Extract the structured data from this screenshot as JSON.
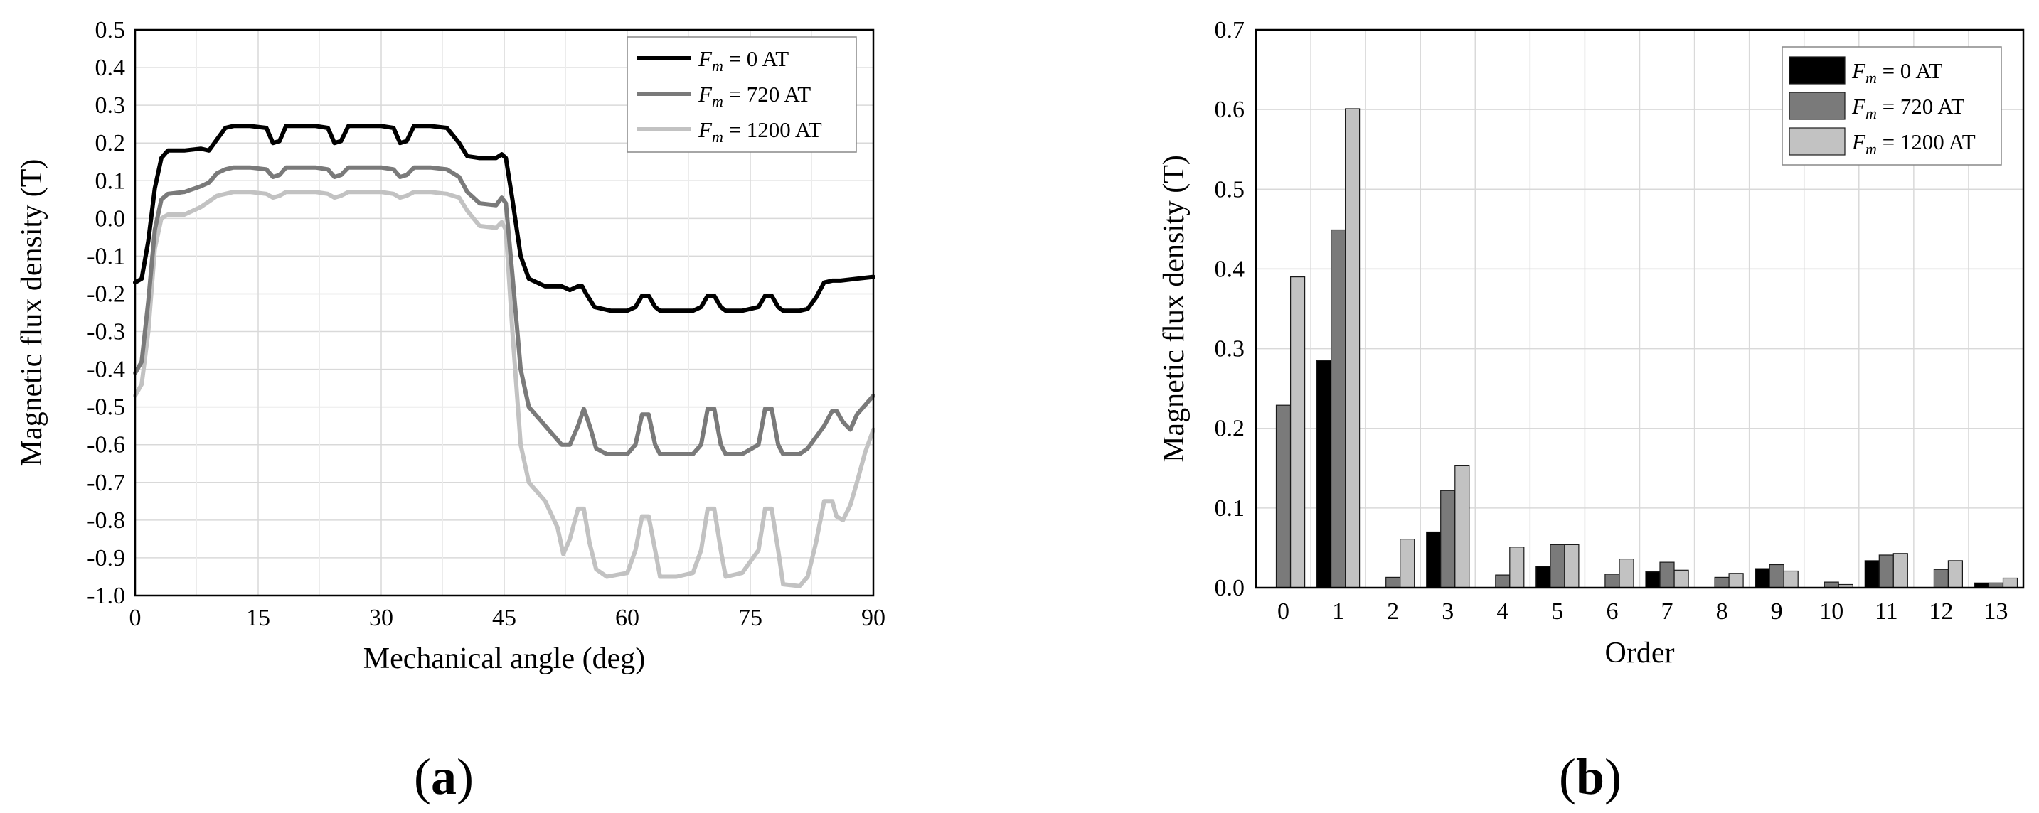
{
  "chart_data": [
    {
      "type": "line",
      "panel_label": "a",
      "title": "",
      "xlabel": "Mechanical angle (deg)",
      "ylabel": "Magnetic flux density (T)",
      "xlim": [
        0,
        90
      ],
      "ylim": [
        -1.0,
        0.5
      ],
      "xticks": [
        "0",
        "15",
        "30",
        "45",
        "60",
        "75",
        "90"
      ],
      "yticks": [
        "0.5",
        "0.4",
        "0.3",
        "0.2",
        "0.1",
        "0.0",
        "-0.1",
        "-0.2",
        "-0.3",
        "-0.4",
        "-0.5",
        "-0.6",
        "-0.7",
        "-0.8",
        "-0.9",
        "-1.0"
      ],
      "grid": true,
      "legend_position": "top-right",
      "series": [
        {
          "name": "F_m = 0 AT",
          "legend_symbol": "F",
          "legend_sub": "m",
          "legend_rest": " = 0 AT",
          "color": "#000000",
          "x": [
            0,
            0.8,
            1.6,
            2.4,
            3.2,
            4,
            6,
            8,
            9,
            10,
            11,
            12,
            14,
            16,
            16.8,
            17.6,
            18.4,
            20,
            22,
            23.5,
            24.3,
            25.1,
            26,
            28,
            30,
            31.5,
            32.3,
            33.1,
            34,
            36,
            38,
            39.5,
            40.5,
            42,
            44,
            44.7,
            45.2,
            46,
            47,
            48,
            50,
            52,
            53,
            54,
            54.5,
            55,
            56,
            58,
            60,
            61,
            61.8,
            62.6,
            63.4,
            64,
            66,
            68,
            69,
            69.8,
            70.6,
            71.4,
            72,
            74,
            76,
            76.8,
            77.6,
            78.4,
            79,
            81,
            82,
            83,
            84,
            85,
            86,
            88,
            90
          ],
          "y": [
            -0.17,
            -0.16,
            -0.06,
            0.08,
            0.16,
            0.18,
            0.18,
            0.185,
            0.18,
            0.21,
            0.24,
            0.245,
            0.245,
            0.24,
            0.2,
            0.205,
            0.245,
            0.245,
            0.245,
            0.24,
            0.2,
            0.205,
            0.245,
            0.245,
            0.245,
            0.24,
            0.2,
            0.205,
            0.245,
            0.245,
            0.24,
            0.2,
            0.165,
            0.16,
            0.16,
            0.17,
            0.16,
            0.05,
            -0.1,
            -0.16,
            -0.18,
            -0.18,
            -0.19,
            -0.18,
            -0.18,
            -0.2,
            -0.235,
            -0.245,
            -0.245,
            -0.235,
            -0.205,
            -0.205,
            -0.235,
            -0.245,
            -0.245,
            -0.245,
            -0.235,
            -0.205,
            -0.205,
            -0.235,
            -0.245,
            -0.245,
            -0.235,
            -0.205,
            -0.205,
            -0.235,
            -0.245,
            -0.245,
            -0.24,
            -0.21,
            -0.17,
            -0.165,
            -0.165,
            -0.16,
            -0.155
          ]
        },
        {
          "name": "F_m = 720 AT",
          "legend_symbol": "F",
          "legend_sub": "m",
          "legend_rest": " = 720 AT",
          "color": "#7a7a7a",
          "x": [
            0,
            0.8,
            1.6,
            2.4,
            3.2,
            4,
            6,
            8,
            9,
            10,
            11,
            12,
            14,
            16,
            16.8,
            17.6,
            18.4,
            20,
            22,
            23.5,
            24.3,
            25.1,
            26,
            28,
            30,
            31.5,
            32.3,
            33.1,
            34,
            36,
            38,
            39.5,
            40.5,
            42,
            44,
            44.7,
            45.2,
            46,
            47,
            48,
            50,
            52,
            53,
            54,
            54.7,
            55.5,
            56.2,
            57.5,
            60,
            61,
            61.8,
            62.6,
            63.4,
            64,
            66,
            68,
            69,
            69.8,
            70.6,
            71.4,
            72,
            74,
            76,
            76.8,
            77.6,
            78.4,
            79,
            81,
            82,
            83,
            84,
            85,
            85.5,
            86.3,
            87.2,
            88,
            90
          ],
          "y": [
            -0.41,
            -0.38,
            -0.22,
            -0.03,
            0.05,
            0.065,
            0.07,
            0.085,
            0.095,
            0.12,
            0.13,
            0.135,
            0.135,
            0.13,
            0.11,
            0.115,
            0.135,
            0.135,
            0.135,
            0.13,
            0.11,
            0.115,
            0.135,
            0.135,
            0.135,
            0.13,
            0.11,
            0.115,
            0.135,
            0.135,
            0.13,
            0.11,
            0.07,
            0.04,
            0.035,
            0.055,
            0.04,
            -0.15,
            -0.4,
            -0.5,
            -0.55,
            -0.6,
            -0.6,
            -0.55,
            -0.505,
            -0.555,
            -0.61,
            -0.625,
            -0.625,
            -0.6,
            -0.52,
            -0.52,
            -0.6,
            -0.625,
            -0.625,
            -0.625,
            -0.6,
            -0.505,
            -0.505,
            -0.6,
            -0.625,
            -0.625,
            -0.6,
            -0.505,
            -0.505,
            -0.6,
            -0.625,
            -0.625,
            -0.61,
            -0.58,
            -0.55,
            -0.51,
            -0.51,
            -0.54,
            -0.56,
            -0.52,
            -0.47
          ]
        },
        {
          "name": "F_m = 1200 AT",
          "legend_symbol": "F",
          "legend_sub": "m",
          "legend_rest": " = 1200 AT",
          "color": "#c2c2c2",
          "x": [
            0,
            0.8,
            1.6,
            2.4,
            3.2,
            4,
            6,
            8,
            9,
            10,
            11,
            12,
            14,
            16,
            16.8,
            17.6,
            18.4,
            20,
            22,
            23.5,
            24.3,
            25.1,
            26,
            28,
            30,
            31.5,
            32.3,
            33.1,
            34,
            36,
            38,
            39.5,
            40.5,
            42,
            44,
            44.7,
            45.2,
            46,
            47,
            48,
            50,
            51.5,
            52.2,
            53,
            54,
            54.7,
            55.4,
            56.2,
            57.5,
            60,
            61,
            61.8,
            62.6,
            63.4,
            64,
            66,
            68,
            69,
            69.8,
            70.6,
            71.4,
            72,
            74,
            76,
            76.8,
            77.6,
            78.4,
            79,
            81,
            82,
            83,
            84,
            85,
            85.5,
            86.3,
            87.2,
            88,
            89,
            90
          ],
          "y": [
            -0.47,
            -0.44,
            -0.3,
            -0.08,
            0.0,
            0.01,
            0.01,
            0.03,
            0.045,
            0.06,
            0.065,
            0.07,
            0.07,
            0.065,
            0.055,
            0.06,
            0.07,
            0.07,
            0.07,
            0.065,
            0.055,
            0.06,
            0.07,
            0.07,
            0.07,
            0.065,
            0.055,
            0.06,
            0.07,
            0.07,
            0.065,
            0.055,
            0.02,
            -0.02,
            -0.025,
            -0.01,
            -0.03,
            -0.3,
            -0.6,
            -0.7,
            -0.75,
            -0.82,
            -0.89,
            -0.85,
            -0.77,
            -0.77,
            -0.86,
            -0.93,
            -0.95,
            -0.94,
            -0.88,
            -0.79,
            -0.79,
            -0.88,
            -0.95,
            -0.95,
            -0.94,
            -0.88,
            -0.77,
            -0.77,
            -0.88,
            -0.95,
            -0.94,
            -0.88,
            -0.77,
            -0.77,
            -0.88,
            -0.97,
            -0.975,
            -0.95,
            -0.86,
            -0.75,
            -0.75,
            -0.79,
            -0.8,
            -0.76,
            -0.7,
            -0.62,
            -0.56
          ]
        }
      ]
    },
    {
      "type": "bar",
      "panel_label": "b",
      "title": "",
      "xlabel": "Order",
      "ylabel": "Magnetic flux density (T)",
      "categories": [
        "0",
        "1",
        "2",
        "3",
        "4",
        "5",
        "6",
        "7",
        "8",
        "9",
        "10",
        "11",
        "12",
        "13"
      ],
      "ylim": [
        0.0,
        0.7
      ],
      "yticks": [
        "0.7",
        "0.6",
        "0.5",
        "0.4",
        "0.3",
        "0.2",
        "0.1",
        "0.0"
      ],
      "grid": true,
      "legend_position": "top-right",
      "series": [
        {
          "name": "F_m = 0 AT",
          "legend_symbol": "F",
          "legend_sub": "m",
          "legend_rest": " = 0 AT",
          "color": "#000000",
          "values": [
            0.0,
            0.285,
            0.0,
            0.07,
            0.0,
            0.027,
            0.0,
            0.02,
            0.0,
            0.024,
            0.0,
            0.034,
            0.0,
            0.006
          ]
        },
        {
          "name": "F_m = 720 AT",
          "legend_symbol": "F",
          "legend_sub": "m",
          "legend_rest": " = 720 AT",
          "color": "#7a7a7a",
          "values": [
            0.229,
            0.449,
            0.013,
            0.122,
            0.016,
            0.054,
            0.017,
            0.032,
            0.013,
            0.029,
            0.007,
            0.041,
            0.023,
            0.006
          ]
        },
        {
          "name": "F_m = 1200 AT",
          "legend_symbol": "F",
          "legend_sub": "m",
          "legend_rest": " = 1200 AT",
          "color": "#c2c2c2",
          "values": [
            0.39,
            0.601,
            0.061,
            0.153,
            0.051,
            0.054,
            0.036,
            0.022,
            0.018,
            0.021,
            0.004,
            0.043,
            0.034,
            0.012
          ]
        }
      ]
    }
  ]
}
